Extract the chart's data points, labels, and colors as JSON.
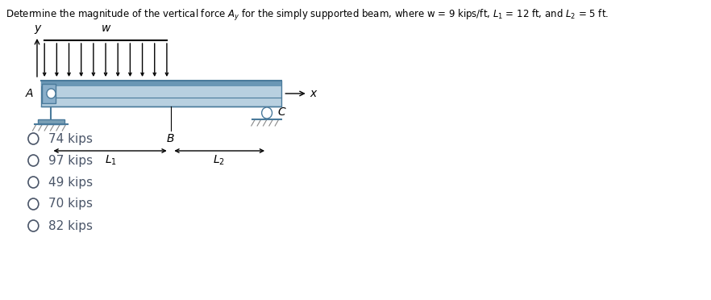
{
  "choices": [
    "74 kips",
    "97 kips",
    "49 kips",
    "70 kips",
    "82 kips"
  ],
  "beam_color_light": "#b8d0e0",
  "beam_color_mid": "#8aafca",
  "beam_color_dark": "#4a7a9b",
  "beam_color_top_stripe": "#6a97b5",
  "support_color": "#7a9fb5",
  "bg_color": "#ffffff",
  "text_color": "#000000",
  "choice_color": "#4a5568"
}
